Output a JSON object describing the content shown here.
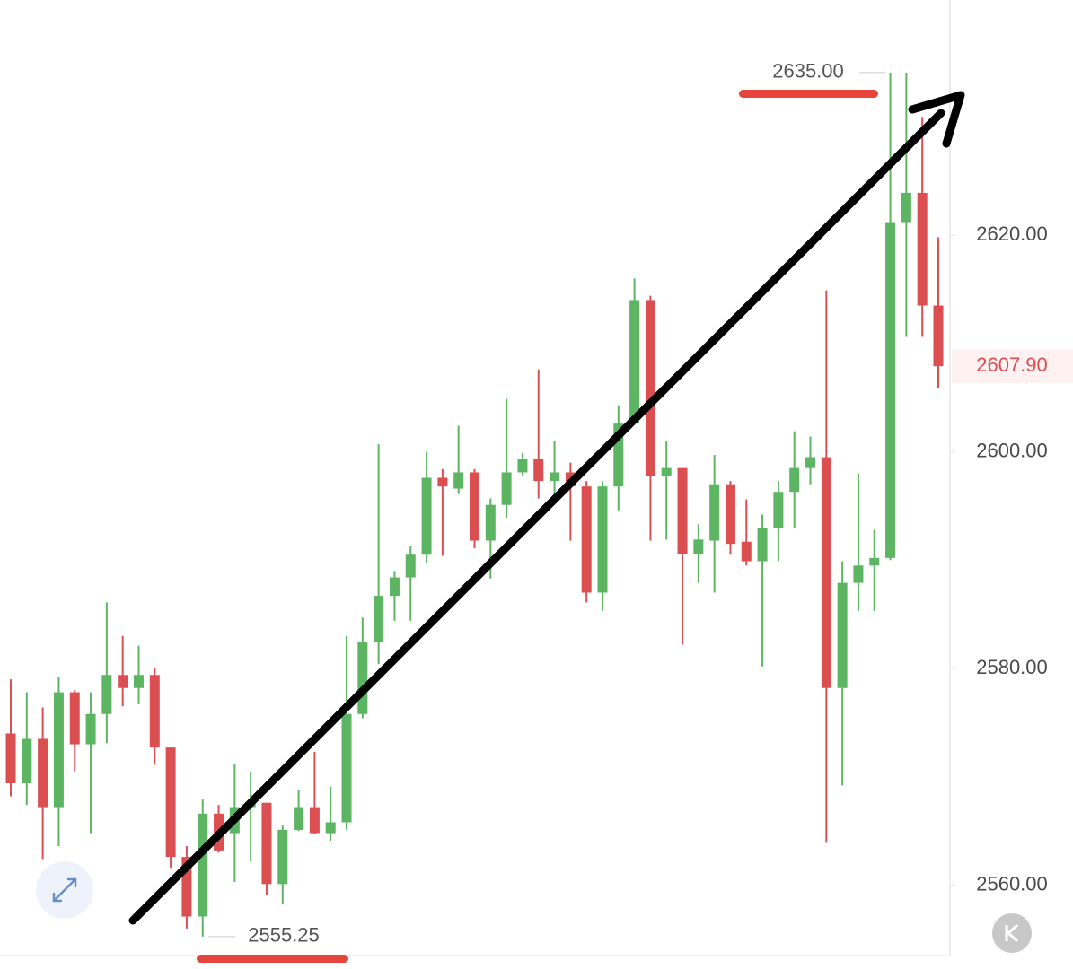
{
  "chart_data": {
    "type": "candlestick",
    "up_color": "#5cb562",
    "down_color": "#db4f52",
    "ylim": [
      2553.5,
      2641.7
    ],
    "yticks": [
      {
        "value": 2560,
        "label": "2560.00"
      },
      {
        "value": 2580,
        "label": "2580.00"
      },
      {
        "value": 2600,
        "label": "2600.00"
      },
      {
        "value": 2620,
        "label": "2620.00"
      }
    ],
    "open": [
      2574.0,
      2569.4,
      2573.5,
      2567.2,
      2577.8,
      2573.0,
      2575.8,
      2579.4,
      2578.2,
      2579.4,
      2572.7,
      2562.6,
      2557.1,
      2566.6,
      2564.8,
      2567.2,
      2567.6,
      2560.1,
      2565.1,
      2567.2,
      2564.8,
      2565.8,
      2575.8,
      2582.4,
      2586.7,
      2588.4,
      2590.5,
      2597.6,
      2596.6,
      2598.1,
      2591.8,
      2595.1,
      2598.1,
      2599.3,
      2597.3,
      2598.1,
      2596.8,
      2587.0,
      2596.8,
      2602.6,
      2614.0,
      2597.8,
      2598.5,
      2590.6,
      2591.8,
      2597.0,
      2591.7,
      2589.9,
      2593.0,
      2596.3,
      2598.5,
      2599.5,
      2578.2,
      2587.9,
      2589.5,
      2590.2,
      2621.2,
      2623.9,
      2613.5
    ],
    "high": [
      2579.0,
      2577.8,
      2576.4,
      2579.2,
      2578.0,
      2577.8,
      2586.1,
      2583.0,
      2582.1,
      2580.0,
      2572.7,
      2563.6,
      2567.9,
      2567.4,
      2571.2,
      2570.5,
      2567.6,
      2565.5,
      2568.8,
      2572.3,
      2569.1,
      2583.0,
      2584.7,
      2600.7,
      2589.0,
      2591.3,
      2600.0,
      2598.4,
      2602.4,
      2598.4,
      2595.7,
      2604.9,
      2599.9,
      2607.6,
      2601.0,
      2599.0,
      2597.3,
      2597.3,
      2604.3,
      2616.0,
      2614.4,
      2601.0,
      2598.5,
      2593.3,
      2599.7,
      2597.3,
      2595.6,
      2594.2,
      2597.3,
      2601.9,
      2601.4,
      2614.9,
      2589.9,
      2598.0,
      2592.8,
      2635.0,
      2635.0,
      2630.9,
      2619.8
    ],
    "low": [
      2568.2,
      2567.4,
      2562.4,
      2563.6,
      2570.5,
      2564.8,
      2573.1,
      2576.5,
      2576.7,
      2571.1,
      2561.6,
      2556.0,
      2555.25,
      2563.0,
      2560.3,
      2562.2,
      2559.1,
      2558.3,
      2565.0,
      2564.7,
      2564.1,
      2565.1,
      2575.4,
      2580.4,
      2584.4,
      2584.4,
      2589.7,
      2590.4,
      2596.1,
      2591.1,
      2588.3,
      2593.9,
      2597.8,
      2595.7,
      2596.1,
      2591.8,
      2586.1,
      2585.3,
      2594.6,
      2602.5,
      2591.8,
      2591.9,
      2582.2,
      2587.9,
      2587.0,
      2590.5,
      2589.5,
      2580.2,
      2589.9,
      2593.0,
      2597.0,
      2563.9,
      2569.2,
      2585.3,
      2585.3,
      2590.0,
      2610.6,
      2610.6,
      2605.9
    ],
    "close": [
      2569.4,
      2573.5,
      2567.2,
      2577.8,
      2573.0,
      2575.8,
      2579.4,
      2578.2,
      2579.4,
      2572.7,
      2562.6,
      2557.1,
      2566.6,
      2563.2,
      2567.2,
      2567.6,
      2560.1,
      2565.1,
      2567.2,
      2564.8,
      2565.8,
      2575.8,
      2582.4,
      2586.7,
      2588.4,
      2590.5,
      2597.6,
      2596.8,
      2598.1,
      2591.8,
      2595.1,
      2598.1,
      2599.3,
      2597.3,
      2598.1,
      2596.8,
      2587.0,
      2596.8,
      2602.6,
      2614.0,
      2597.8,
      2598.5,
      2590.6,
      2591.9,
      2597.0,
      2591.5,
      2589.9,
      2593.0,
      2596.3,
      2598.5,
      2599.5,
      2578.2,
      2587.9,
      2589.5,
      2590.2,
      2621.2,
      2623.9,
      2613.5,
      2607.9
    ],
    "high_label": {
      "value": 2635.0,
      "label": "2635.00"
    },
    "low_label": {
      "value": 2555.25,
      "label": "2555.25"
    },
    "last_price": {
      "value": 2607.9,
      "label": "2607.90"
    }
  }
}
